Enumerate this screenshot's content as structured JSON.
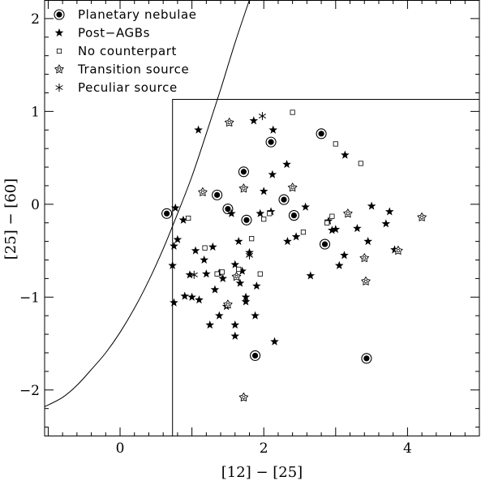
{
  "chart_data": {
    "type": "scatter",
    "xlabel": "[12] − [25]",
    "ylabel": "[25] − [60]",
    "xlim": [
      -1.05,
      5.0
    ],
    "ylim": [
      -2.5,
      2.2
    ],
    "x_ticks": [
      {
        "value": 0,
        "label": "0"
      },
      {
        "value": 2,
        "label": "2"
      },
      {
        "value": 4,
        "label": "4"
      }
    ],
    "y_ticks": [
      {
        "value": -2,
        "label": "−2"
      },
      {
        "value": -1,
        "label": "−1"
      },
      {
        "value": 0,
        "label": "0"
      },
      {
        "value": 1,
        "label": "1"
      },
      {
        "value": 2,
        "label": "2"
      }
    ],
    "legend_position": "top-left",
    "box_region": {
      "x_min": 0.73,
      "y_max": 1.13
    },
    "curve": [
      [
        -1.05,
        -2.18
      ],
      [
        -0.8,
        -2.08
      ],
      [
        -0.6,
        -1.95
      ],
      [
        -0.4,
        -1.78
      ],
      [
        -0.2,
        -1.6
      ],
      [
        0.0,
        -1.38
      ],
      [
        0.2,
        -1.12
      ],
      [
        0.4,
        -0.82
      ],
      [
        0.6,
        -0.48
      ],
      [
        0.8,
        -0.1
      ],
      [
        1.0,
        0.3
      ],
      [
        1.2,
        0.76
      ],
      [
        1.4,
        1.24
      ],
      [
        1.6,
        1.74
      ],
      [
        1.8,
        2.2
      ]
    ],
    "series": [
      {
        "name": "Planetary nebulae",
        "marker": "circled-dot",
        "points": [
          [
            0.65,
            -0.1
          ],
          [
            1.35,
            0.1
          ],
          [
            1.5,
            -0.05
          ],
          [
            1.72,
            0.35
          ],
          [
            1.76,
            -0.17
          ],
          [
            1.88,
            -1.63
          ],
          [
            2.1,
            0.67
          ],
          [
            2.28,
            0.05
          ],
          [
            2.42,
            -0.12
          ],
          [
            2.8,
            0.76
          ],
          [
            2.85,
            -0.43
          ],
          [
            3.43,
            -1.66
          ]
        ]
      },
      {
        "name": "Post−AGBs",
        "marker": "filled-star",
        "points": [
          [
            0.77,
            -0.04
          ],
          [
            0.8,
            -0.38
          ],
          [
            0.75,
            -0.45
          ],
          [
            0.73,
            -0.66
          ],
          [
            0.88,
            -0.17
          ],
          [
            0.97,
            -0.76
          ],
          [
            0.9,
            -0.99
          ],
          [
            0.75,
            -1.06
          ],
          [
            1.0,
            -1.0
          ],
          [
            1.05,
            -0.5
          ],
          [
            1.1,
            -1.03
          ],
          [
            1.09,
            0.8
          ],
          [
            1.17,
            -0.6
          ],
          [
            1.2,
            -0.75
          ],
          [
            1.25,
            -1.3
          ],
          [
            1.29,
            -0.46
          ],
          [
            1.32,
            -0.92
          ],
          [
            1.38,
            -0.74
          ],
          [
            1.38,
            -1.2
          ],
          [
            1.43,
            -0.8
          ],
          [
            1.48,
            -1.1
          ],
          [
            1.55,
            -0.1
          ],
          [
            1.6,
            -0.65
          ],
          [
            1.6,
            -1.3
          ],
          [
            1.6,
            -1.42
          ],
          [
            1.65,
            -0.4
          ],
          [
            1.67,
            -0.85
          ],
          [
            1.7,
            -0.72
          ],
          [
            1.75,
            -1.0
          ],
          [
            1.8,
            -0.52
          ],
          [
            1.75,
            -1.05
          ],
          [
            1.86,
            0.9
          ],
          [
            1.88,
            -1.2
          ],
          [
            1.9,
            -0.88
          ],
          [
            1.95,
            -0.1
          ],
          [
            2.0,
            0.14
          ],
          [
            2.1,
            -0.08
          ],
          [
            2.12,
            0.32
          ],
          [
            2.13,
            0.8
          ],
          [
            2.15,
            -1.48
          ],
          [
            2.32,
            0.43
          ],
          [
            2.33,
            -0.4
          ],
          [
            2.45,
            -0.35
          ],
          [
            2.58,
            -0.03
          ],
          [
            2.65,
            -0.77
          ],
          [
            2.9,
            -0.18
          ],
          [
            2.95,
            -0.28
          ],
          [
            3.0,
            -0.27
          ],
          [
            3.05,
            -0.66
          ],
          [
            3.12,
            -0.55
          ],
          [
            3.13,
            0.53
          ],
          [
            3.3,
            -0.26
          ],
          [
            3.45,
            -0.4
          ],
          [
            3.5,
            -0.02
          ],
          [
            3.7,
            -0.21
          ],
          [
            3.75,
            -0.08
          ],
          [
            3.82,
            -0.49
          ]
        ]
      },
      {
        "name": "No counterpart",
        "marker": "open-square",
        "points": [
          [
            0.95,
            -0.15
          ],
          [
            1.18,
            -0.47
          ],
          [
            1.35,
            -0.75
          ],
          [
            1.42,
            -0.73
          ],
          [
            1.65,
            -0.7
          ],
          [
            1.83,
            -0.37
          ],
          [
            1.95,
            -0.75
          ],
          [
            2.0,
            -0.16
          ],
          [
            2.08,
            -0.1
          ],
          [
            2.4,
            0.99
          ],
          [
            2.55,
            -0.3
          ],
          [
            2.88,
            -0.2
          ],
          [
            2.95,
            -0.13
          ],
          [
            3.0,
            0.65
          ],
          [
            3.35,
            0.44
          ]
        ]
      },
      {
        "name": "Transition source",
        "marker": "open-star",
        "points": [
          [
            1.15,
            0.13
          ],
          [
            1.5,
            -1.08
          ],
          [
            1.52,
            0.88
          ],
          [
            1.62,
            -0.78
          ],
          [
            1.72,
            0.17
          ],
          [
            1.72,
            -2.08
          ],
          [
            2.4,
            0.18
          ],
          [
            3.17,
            -0.1
          ],
          [
            3.4,
            -0.58
          ],
          [
            3.42,
            -0.83
          ],
          [
            3.87,
            -0.5
          ],
          [
            4.2,
            -0.14
          ]
        ]
      },
      {
        "name": "Peculiar source",
        "marker": "asterisk",
        "points": [
          [
            1.98,
            0.95
          ],
          [
            1.8,
            -0.55
          ],
          [
            1.03,
            -0.76
          ]
        ]
      }
    ]
  }
}
